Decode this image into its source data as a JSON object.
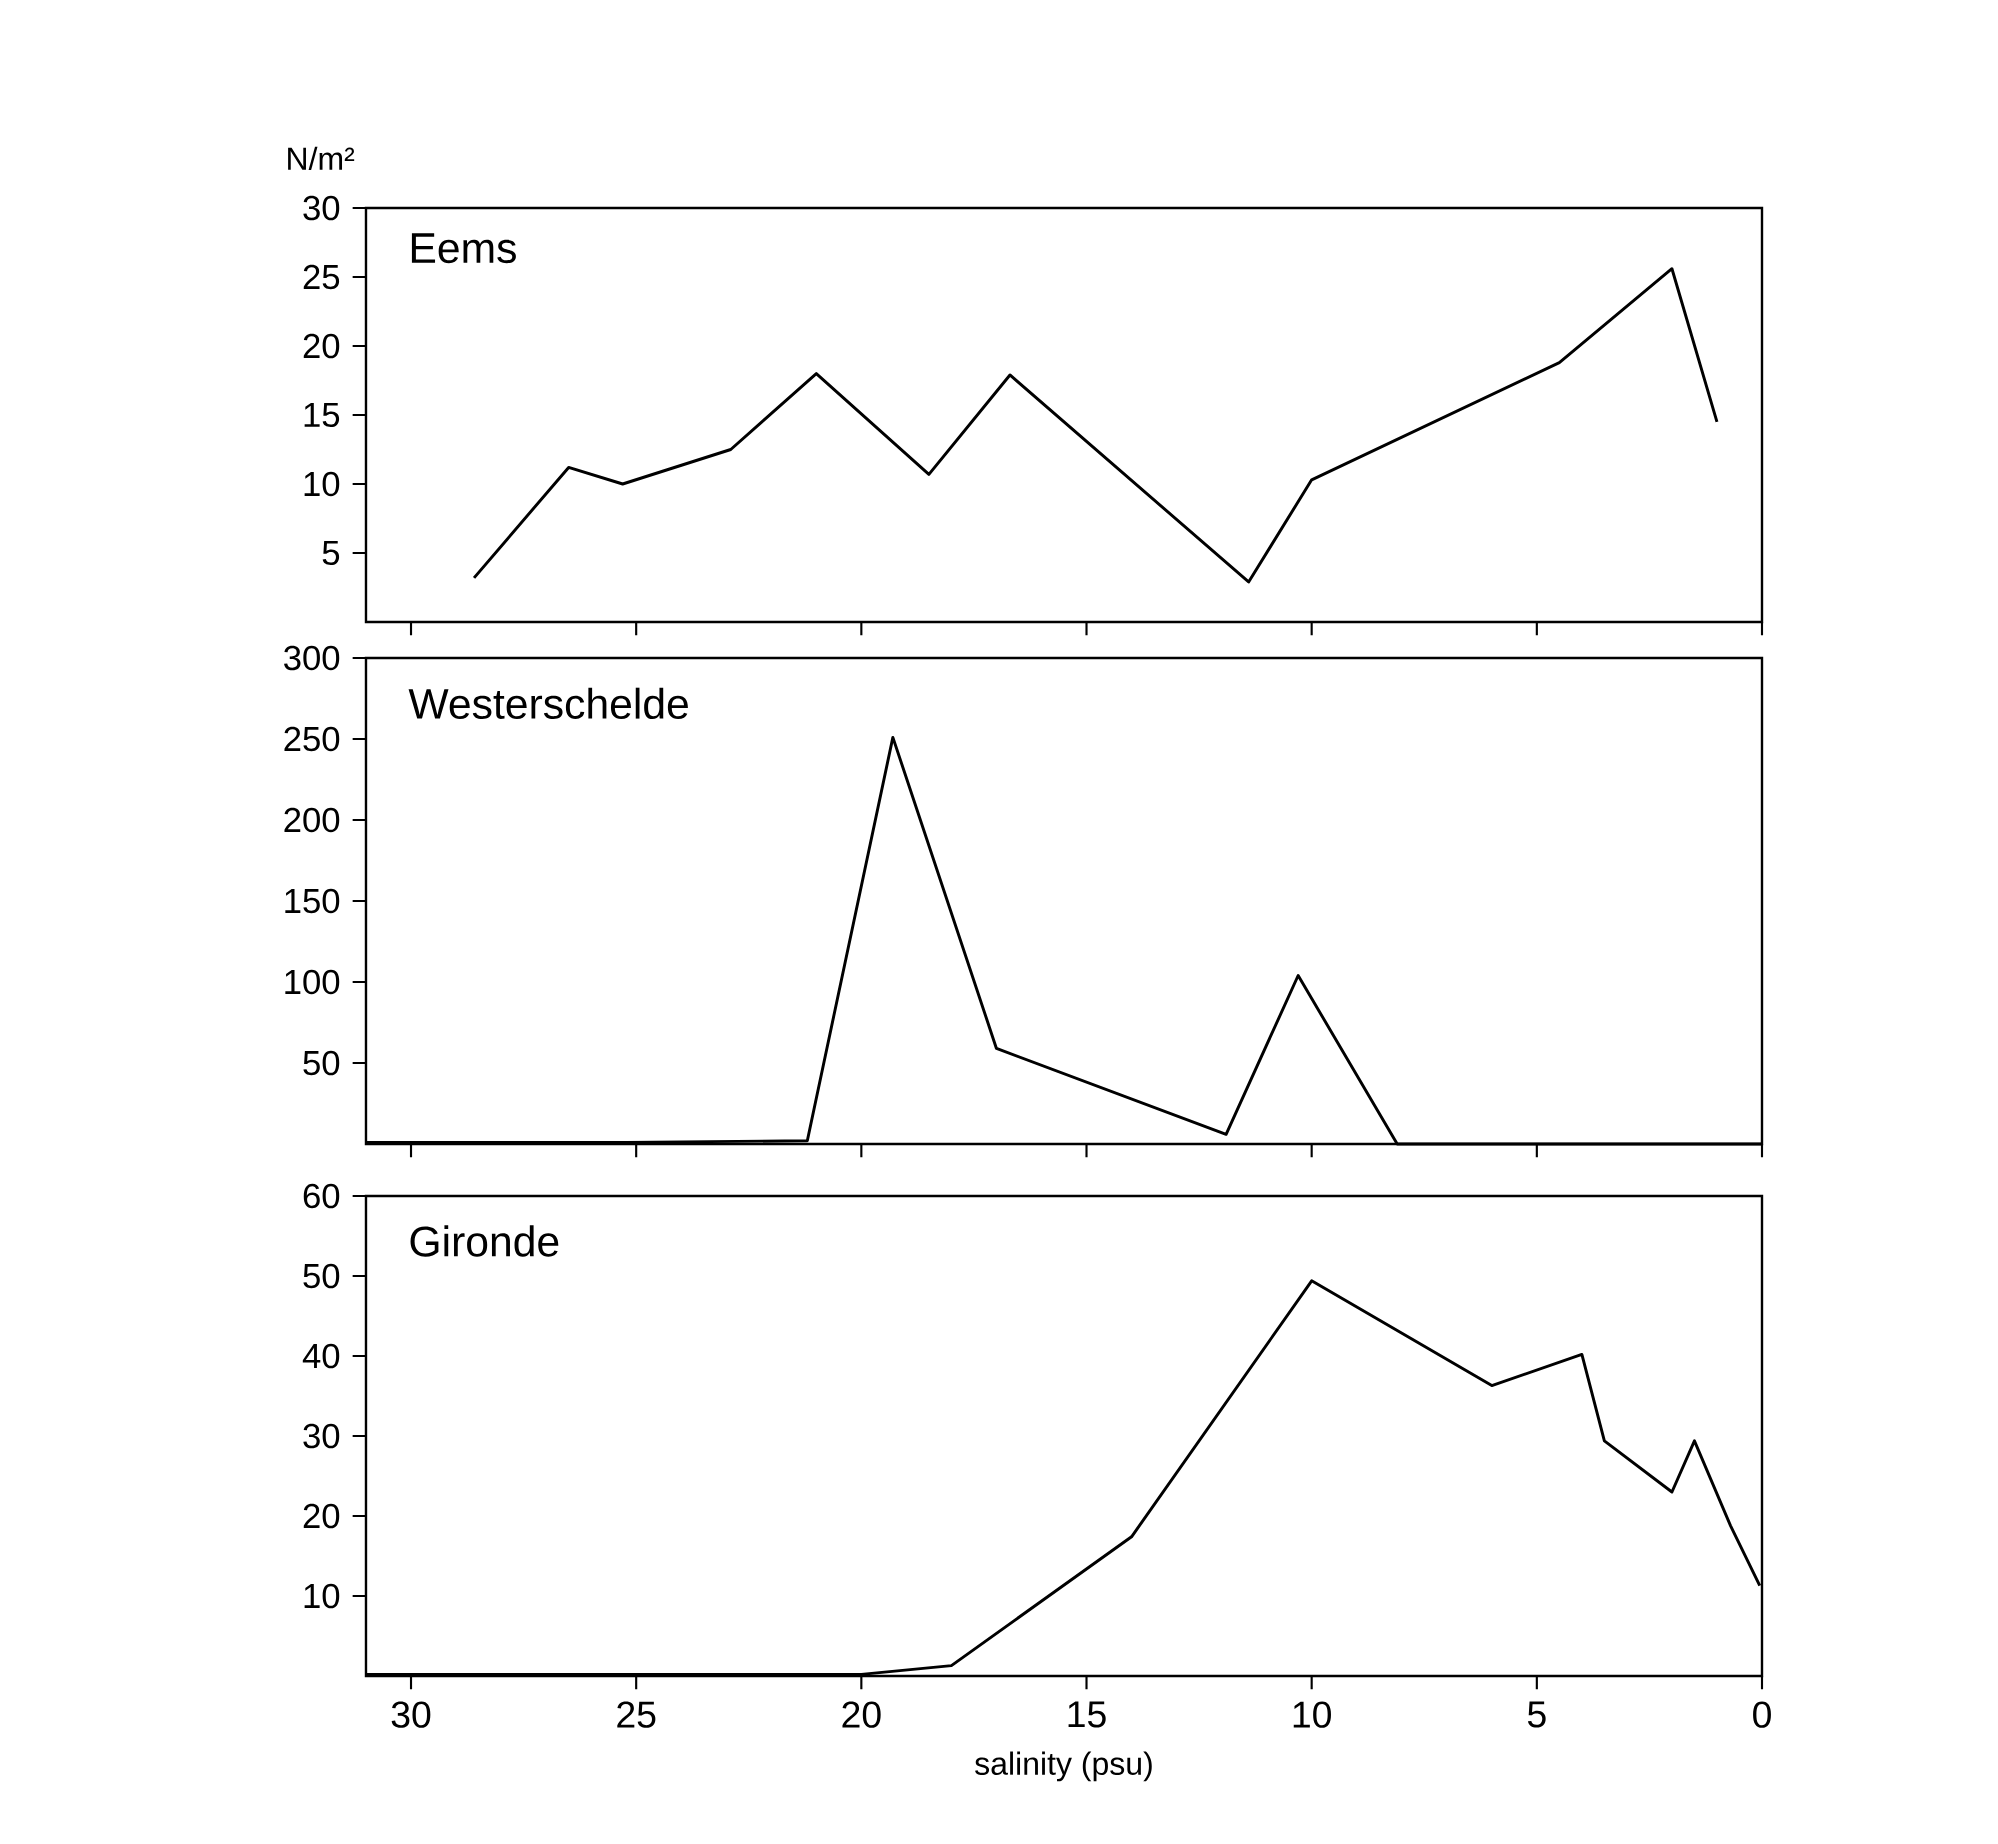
{
  "chart_data": [
    {
      "type": "line",
      "title": "Eems",
      "ylabel": "N/m²",
      "xlim": [
        31,
        0
      ],
      "xticks": [
        30,
        25,
        20,
        15,
        10,
        5,
        0
      ],
      "ylim": [
        0,
        30
      ],
      "yticks": [
        5,
        10,
        15,
        20,
        25,
        30
      ],
      "tick_labels": "y",
      "x": [
        28.6,
        26.5,
        25.3,
        22.9,
        21.0,
        18.5,
        16.7,
        11.4,
        10.0,
        4.5,
        2.0,
        1.0
      ],
      "series": [
        {
          "color": "#000000",
          "values": [
            3.2,
            11.2,
            10.0,
            12.5,
            18.0,
            10.7,
            17.9,
            2.9,
            10.3,
            18.8,
            25.6,
            14.5
          ]
        }
      ]
    },
    {
      "type": "line",
      "title": "Westerschelde",
      "xlim": [
        31,
        0
      ],
      "xticks": [
        30,
        25,
        20,
        15,
        10,
        5,
        0
      ],
      "ylim": [
        0,
        300
      ],
      "yticks": [
        50,
        100,
        150,
        200,
        250,
        300
      ],
      "tick_labels": "y",
      "x": [
        31,
        25.2,
        21.2,
        19.3,
        17.0,
        11.9,
        10.3,
        8.1,
        0
      ],
      "series": [
        {
          "color": "#000000",
          "values": [
            1,
            1,
            2,
            251,
            59,
            6,
            104,
            0,
            0
          ]
        }
      ]
    },
    {
      "type": "line",
      "title": "Gironde",
      "xlabel": "salinity (psu)",
      "xlim": [
        31,
        0
      ],
      "xticks": [
        30,
        25,
        20,
        15,
        10,
        5,
        0
      ],
      "ylim": [
        0,
        60
      ],
      "yticks": [
        10,
        20,
        30,
        40,
        50,
        60
      ],
      "x": [
        31,
        24.9,
        20.0,
        18.0,
        14.0,
        10.0,
        6.0,
        4.0,
        3.5,
        2.0,
        1.5,
        0.7,
        0.05
      ],
      "series": [
        {
          "color": "#000000",
          "values": [
            0.2,
            0.2,
            0.2,
            1.3,
            17.4,
            49.4,
            36.3,
            40.2,
            29.4,
            23.0,
            29.4,
            18.8,
            11.3
          ]
        }
      ]
    }
  ]
}
